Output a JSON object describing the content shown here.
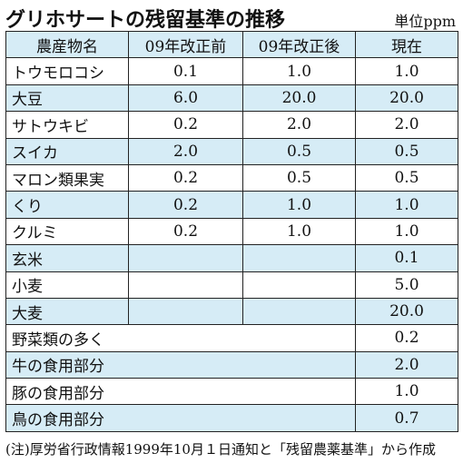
{
  "title": "グリホサートの残留基準の推移",
  "unit": "単位ppm",
  "table": {
    "headers": [
      "農産物名",
      "09年改正前",
      "09年改正後",
      "現在"
    ],
    "rows": [
      {
        "name": "トウモロコシ",
        "before": "0.1",
        "after": "1.0",
        "current": "1.0"
      },
      {
        "name": "大豆",
        "before": "6.0",
        "after": "20.0",
        "current": "20.0"
      },
      {
        "name": "サトウキビ",
        "before": "0.2",
        "after": "2.0",
        "current": "2.0"
      },
      {
        "name": "スイカ",
        "before": "2.0",
        "after": "0.5",
        "current": "0.5"
      },
      {
        "name": "マロン類果実",
        "before": "0.2",
        "after": "0.5",
        "current": "0.5"
      },
      {
        "name": "くり",
        "before": "0.2",
        "after": "1.0",
        "current": "1.0"
      },
      {
        "name": "クルミ",
        "before": "0.2",
        "after": "1.0",
        "current": "1.0"
      },
      {
        "name": "玄米",
        "before": "",
        "after": "",
        "current": "0.1"
      },
      {
        "name": "小麦",
        "before": "",
        "after": "",
        "current": "5.0"
      },
      {
        "name": "大麦",
        "before": "",
        "after": "",
        "current": "20.0"
      },
      {
        "name": "野菜類の多く",
        "current": "0.2"
      },
      {
        "name": "牛の食用部分",
        "current": "2.0"
      },
      {
        "name": "豚の食用部分",
        "current": "1.0"
      },
      {
        "name": "鳥の食用部分",
        "current": "0.7"
      }
    ]
  },
  "note": "(注)厚労省行政情報1999年10月１日通知と「残留農薬基準」から作成",
  "colors": {
    "shade": "#d6ecf6",
    "border": "#222222"
  }
}
